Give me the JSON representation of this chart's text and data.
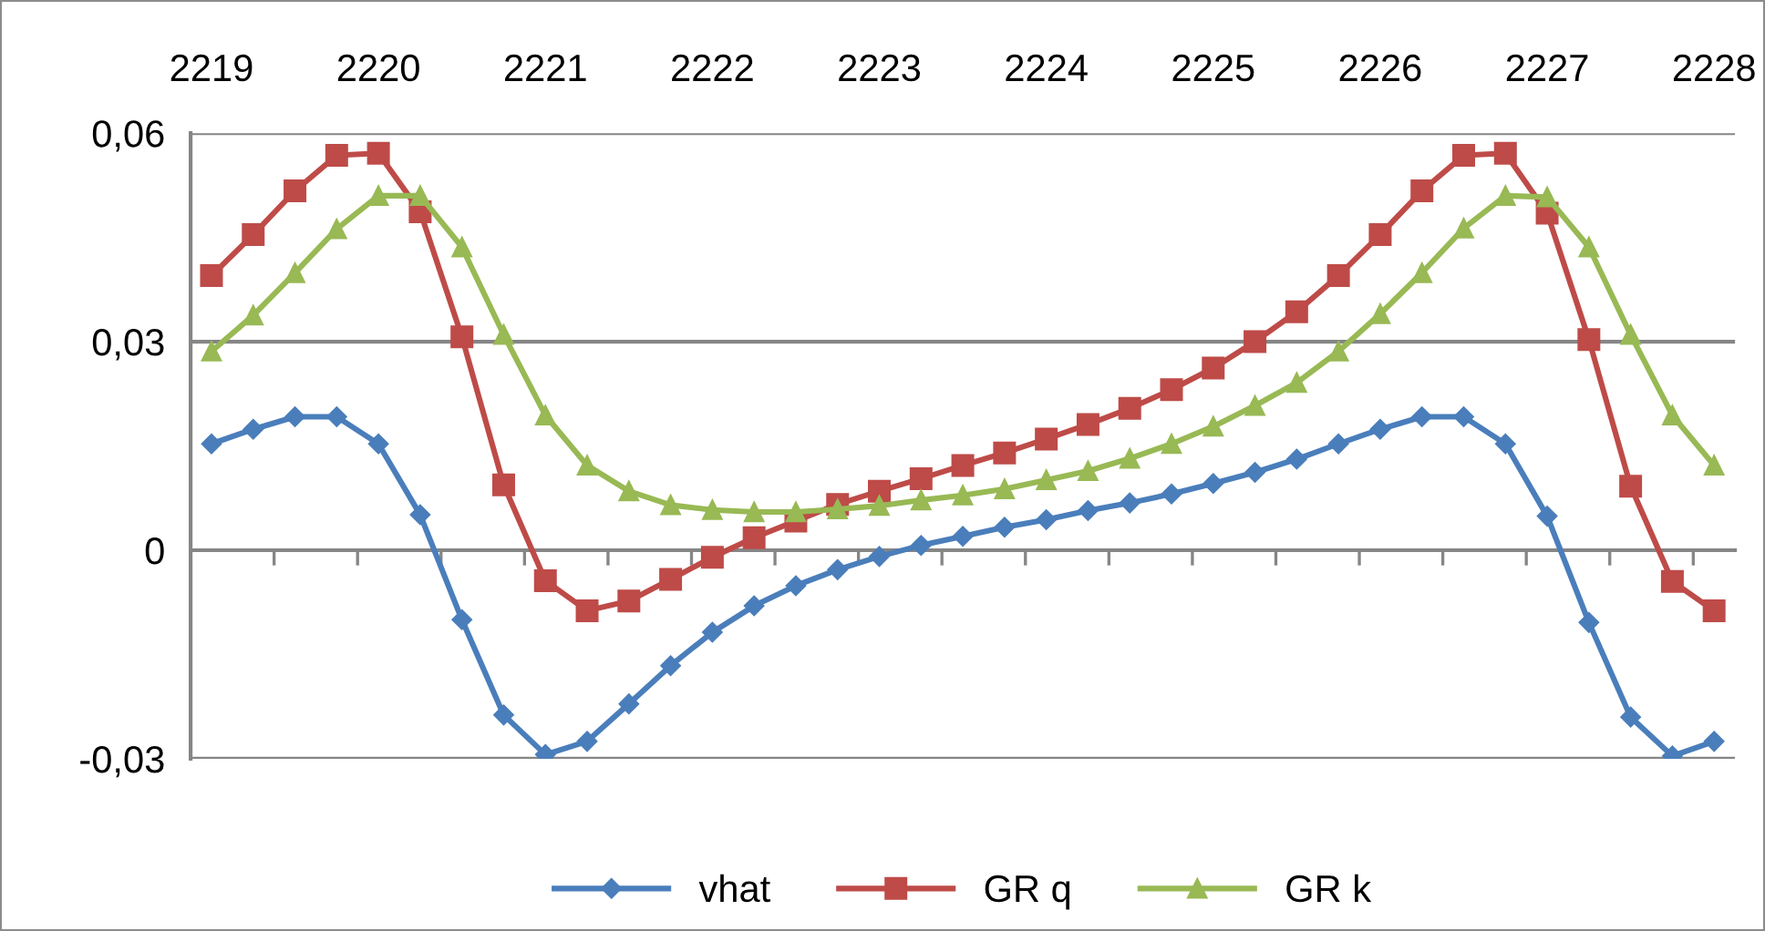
{
  "chart_data": {
    "type": "line",
    "categories": [
      "2219",
      null,
      null,
      null,
      "2220",
      null,
      null,
      null,
      "2221",
      null,
      null,
      null,
      "2222",
      null,
      null,
      null,
      "2223",
      null,
      null,
      null,
      "2224",
      null,
      null,
      null,
      "2225",
      null,
      null,
      null,
      "2226",
      null,
      null,
      null,
      "2227",
      null,
      null,
      null,
      "2228"
    ],
    "series": [
      {
        "name": "vhat",
        "color": "#4a7ebb",
        "marker": "diamond",
        "values": [
          0.0153,
          0.0174,
          0.0192,
          0.0192,
          0.0153,
          0.0051,
          -0.01,
          -0.0237,
          -0.0294,
          -0.0275,
          -0.0221,
          -0.0166,
          -0.0118,
          -0.008,
          -0.0051,
          -0.0028,
          -0.0009,
          0.0007,
          0.002,
          0.0033,
          0.0044,
          0.0057,
          0.0068,
          0.0081,
          0.0096,
          0.0112,
          0.0131,
          0.0153,
          0.0174,
          0.0192,
          0.0192,
          0.0153,
          0.0049,
          -0.0104,
          -0.024,
          -0.0296,
          -0.0275
        ]
      },
      {
        "name": "GR q",
        "color": "#be4b48",
        "marker": "square",
        "values": [
          0.0395,
          0.0454,
          0.0517,
          0.0568,
          0.0571,
          0.0487,
          0.0307,
          0.0094,
          -0.0044,
          -0.0087,
          -0.0073,
          -0.0042,
          -0.001,
          0.0018,
          0.0042,
          0.0066,
          0.0085,
          0.0103,
          0.0122,
          0.014,
          0.016,
          0.0181,
          0.0204,
          0.0231,
          0.0262,
          0.03,
          0.0343,
          0.0395,
          0.0454,
          0.0517,
          0.0568,
          0.0571,
          0.0485,
          0.0303,
          0.0092,
          -0.0045,
          -0.0087
        ]
      },
      {
        "name": "GR k",
        "color": "#98b954",
        "marker": "triangle",
        "values": [
          0.0286,
          0.0338,
          0.0399,
          0.0462,
          0.051,
          0.051,
          0.0436,
          0.031,
          0.0194,
          0.0122,
          0.0085,
          0.0065,
          0.0058,
          0.0055,
          0.0055,
          0.0059,
          0.0064,
          0.0072,
          0.0079,
          0.0088,
          0.0101,
          0.0114,
          0.0132,
          0.0153,
          0.0178,
          0.0208,
          0.0241,
          0.0286,
          0.034,
          0.0399,
          0.0463,
          0.051,
          0.0508,
          0.0436,
          0.031,
          0.0194,
          0.0122
        ]
      }
    ],
    "ylim": [
      -0.03,
      0.06
    ],
    "yticks": [
      {
        "value": -0.03,
        "label": "-0,03"
      },
      {
        "value": 0,
        "label": "0"
      },
      {
        "value": 0.03,
        "label": "0,03"
      },
      {
        "value": 0.06,
        "label": "0,06"
      }
    ],
    "grid": "y",
    "legend": "bottom",
    "line_style": "solid"
  }
}
